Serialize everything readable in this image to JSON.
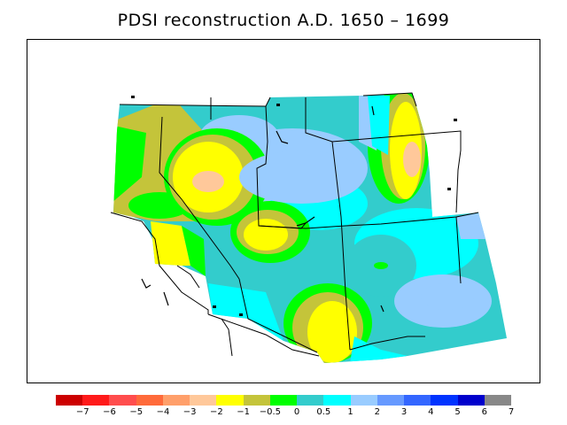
{
  "title": "PDSI reconstruction A.D. 1650 – 1699",
  "legend": {
    "colors": [
      "#cc0000",
      "#ff1a1a",
      "#ff4d4d",
      "#ff6a3a",
      "#ff9f6a",
      "#ffc89a",
      "#ffff00",
      "#c4c43a",
      "#00ff00",
      "#33cccc",
      "#00ffff",
      "#99ccff",
      "#6699ff",
      "#3366ff",
      "#0033ff",
      "#0000cc",
      "#888888"
    ],
    "ticks": [
      "−7",
      "−6",
      "−5",
      "−4",
      "−3",
      "−2",
      "−1",
      "−0.5",
      "0",
      "0.5",
      "1",
      "2",
      "3",
      "4",
      "5",
      "6",
      "7"
    ]
  }
}
